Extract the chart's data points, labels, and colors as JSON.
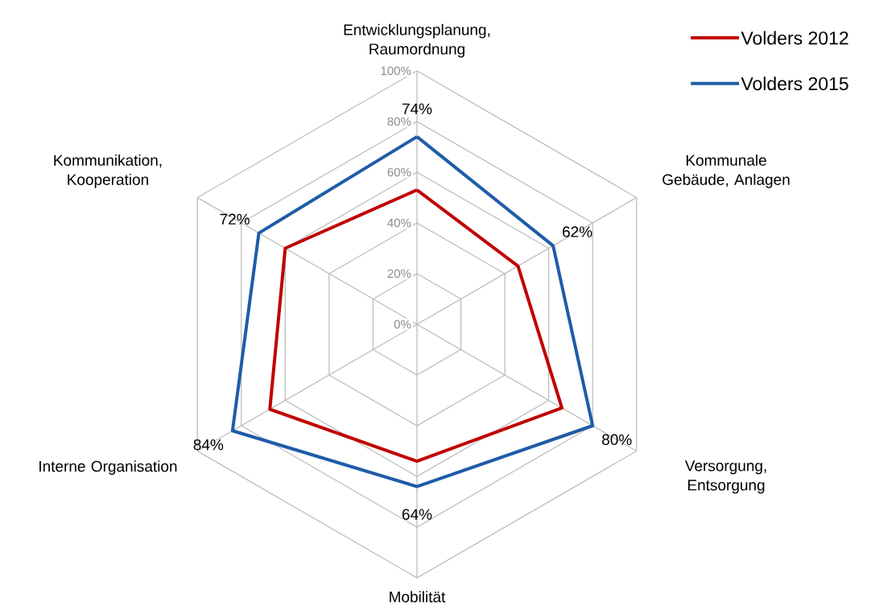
{
  "chart_data": {
    "type": "radar",
    "categories": [
      "Entwicklungsplanung, Raumordnung",
      "Kommunale Gebäude, Anlagen",
      "Versorgung, Entsorgung",
      "Mobilität",
      "Interne Organisation",
      "Kommunikation, Kooperation"
    ],
    "series": [
      {
        "name": "Volders 2012",
        "color": "#c00000",
        "values": [
          53,
          46,
          66,
          54,
          67,
          60
        ]
      },
      {
        "name": "Volders 2015",
        "color": "#1f5ca8",
        "values": [
          74,
          62,
          80,
          64,
          84,
          72
        ],
        "value_labels": [
          "74%",
          "62%",
          "80%",
          "64%",
          "84%",
          "72%"
        ]
      }
    ],
    "ylim": [
      0,
      100
    ],
    "yticks": [
      {
        "value": 0,
        "label": "0%"
      },
      {
        "value": 20,
        "label": "20%"
      },
      {
        "value": 40,
        "label": "40%"
      },
      {
        "value": 60,
        "label": "60%"
      },
      {
        "value": 80,
        "label": "80%"
      },
      {
        "value": 100,
        "label": "100%"
      }
    ],
    "grid": true,
    "legend": "top right",
    "marker": "none",
    "line_style": "solid"
  }
}
